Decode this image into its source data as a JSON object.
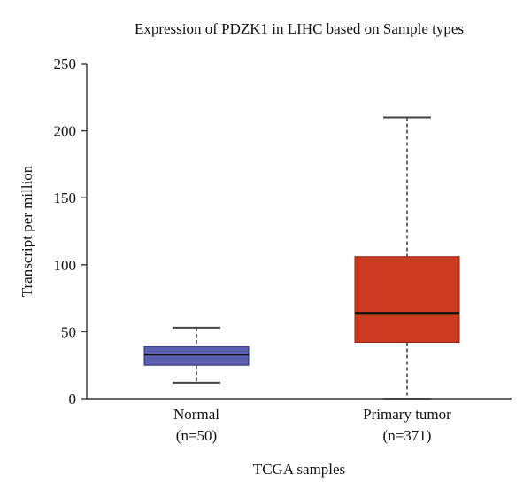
{
  "chart_data": {
    "type": "boxplot",
    "title": "Expression of PDZK1 in LIHC based on Sample types",
    "xlabel": "TCGA samples",
    "ylabel": "Transcript per million",
    "ylim": [
      0,
      250
    ],
    "yticks": [
      0,
      50,
      100,
      150,
      200,
      250
    ],
    "grid": false,
    "legend": "none",
    "categories": [
      {
        "label": "Normal",
        "n_label": "(n=50)"
      },
      {
        "label": "Primary tumor",
        "n_label": "(n=371)"
      }
    ],
    "series": [
      {
        "category": "Normal",
        "min": 12,
        "q1": 25,
        "median": 33,
        "q3": 39,
        "max": 53,
        "color": "#5a5fae",
        "border": "#2b2f7a"
      },
      {
        "category": "Primary tumor",
        "min": 0,
        "q1": 42,
        "median": 64,
        "q3": 106,
        "max": 210,
        "color": "#cc3b1f",
        "border": "#8c2412"
      }
    ]
  }
}
